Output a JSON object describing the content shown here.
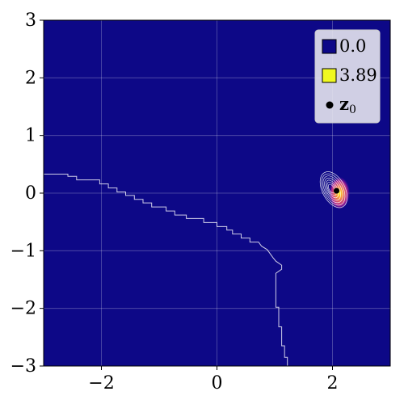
{
  "chart_data": {
    "type": "heatmap",
    "title": "",
    "xlabel": "",
    "ylabel": "",
    "xlim": [
      -3,
      3
    ],
    "ylim": [
      -3,
      3
    ],
    "x_ticks": [
      -2,
      0,
      2
    ],
    "y_ticks": [
      -3,
      -2,
      -1,
      0,
      1,
      2,
      3
    ],
    "x_tick_labels": [
      "−2",
      "0",
      "2"
    ],
    "y_tick_labels": [
      "−3",
      "−2",
      "−1",
      "0",
      "1",
      "2",
      "3"
    ],
    "grid": true,
    "colormap": "plasma",
    "background_color": "#0d0887",
    "peak_color": "#f0f921",
    "color_range": [
      0.0,
      3.89
    ],
    "peak": {
      "x": 2.12,
      "y": 0.0,
      "value": 3.89
    },
    "contour_center": {
      "x": 2.02,
      "y": 0.06
    },
    "z0_point": {
      "x": 2.07,
      "y": 0.04
    },
    "boundary": [
      [
        -3.0,
        0.33
      ],
      [
        -2.58,
        0.33
      ],
      [
        -2.58,
        0.29
      ],
      [
        -2.43,
        0.29
      ],
      [
        -2.43,
        0.23
      ],
      [
        -2.03,
        0.23
      ],
      [
        -2.03,
        0.16
      ],
      [
        -1.88,
        0.16
      ],
      [
        -1.88,
        0.09
      ],
      [
        -1.73,
        0.09
      ],
      [
        -1.73,
        0.02
      ],
      [
        -1.58,
        0.02
      ],
      [
        -1.58,
        -0.04
      ],
      [
        -1.43,
        -0.04
      ],
      [
        -1.43,
        -0.11
      ],
      [
        -1.28,
        -0.11
      ],
      [
        -1.28,
        -0.17
      ],
      [
        -1.13,
        -0.17
      ],
      [
        -1.13,
        -0.24
      ],
      [
        -0.88,
        -0.24
      ],
      [
        -0.88,
        -0.31
      ],
      [
        -0.73,
        -0.31
      ],
      [
        -0.73,
        -0.38
      ],
      [
        -0.53,
        -0.38
      ],
      [
        -0.53,
        -0.44
      ],
      [
        -0.23,
        -0.44
      ],
      [
        -0.23,
        -0.51
      ],
      [
        0.0,
        -0.51
      ],
      [
        0.0,
        -0.58
      ],
      [
        0.17,
        -0.58
      ],
      [
        0.17,
        -0.64
      ],
      [
        0.27,
        -0.64
      ],
      [
        0.27,
        -0.71
      ],
      [
        0.42,
        -0.71
      ],
      [
        0.42,
        -0.78
      ],
      [
        0.57,
        -0.78
      ],
      [
        0.57,
        -0.85
      ],
      [
        0.72,
        -0.85
      ],
      [
        0.77,
        -0.92
      ],
      [
        0.87,
        -0.98
      ],
      [
        0.92,
        -1.05
      ],
      [
        0.97,
        -1.12
      ],
      [
        1.02,
        -1.18
      ],
      [
        1.12,
        -1.25
      ],
      [
        1.12,
        -1.32
      ],
      [
        1.02,
        -1.39
      ],
      [
        1.02,
        -1.98
      ],
      [
        1.07,
        -1.98
      ],
      [
        1.07,
        -2.32
      ],
      [
        1.12,
        -2.32
      ],
      [
        1.12,
        -2.65
      ],
      [
        1.17,
        -2.65
      ],
      [
        1.17,
        -2.85
      ],
      [
        1.22,
        -2.85
      ],
      [
        1.22,
        -3.0
      ]
    ],
    "legend": {
      "position": "top-right",
      "entries": [
        {
          "label": "0.0",
          "color": "#0d0887",
          "marker": "square"
        },
        {
          "label": "3.89",
          "color": "#f0f921",
          "marker": "square"
        },
        {
          "label": "z0",
          "color": "#000000",
          "marker": "circle"
        }
      ]
    }
  }
}
